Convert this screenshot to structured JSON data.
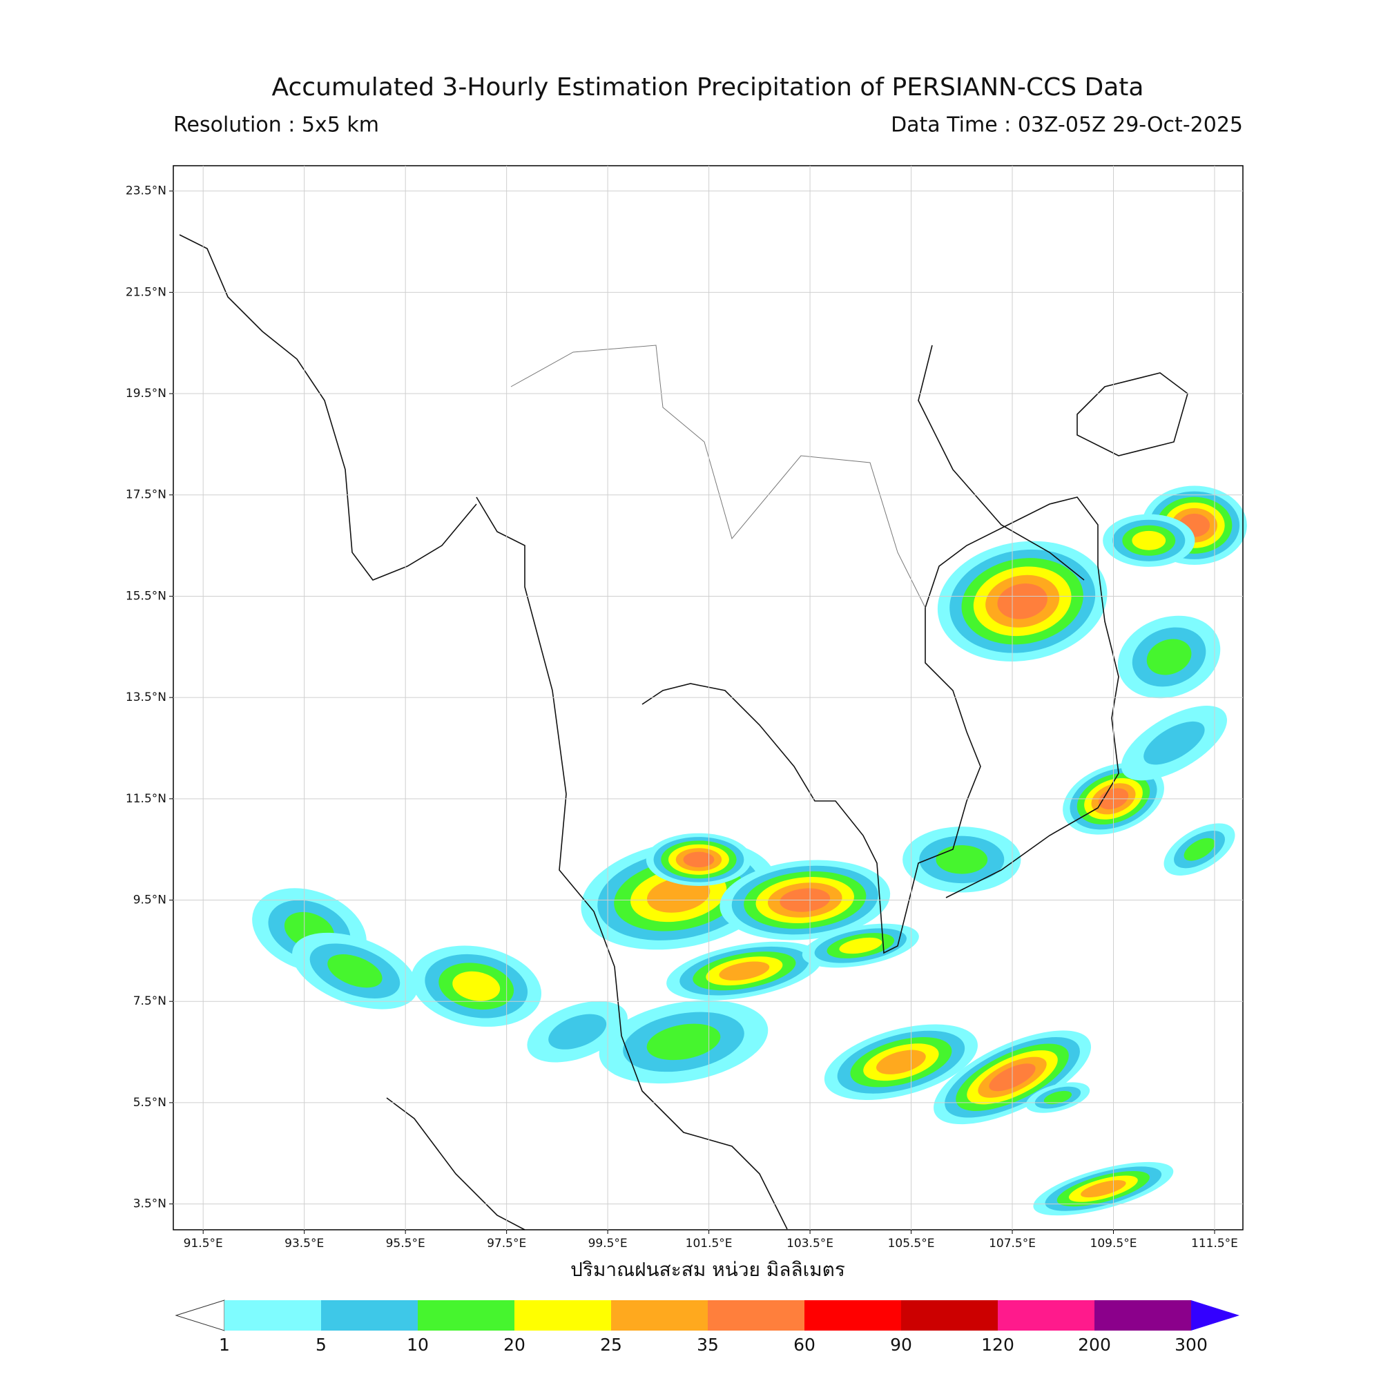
{
  "header": {
    "title": "Accumulated 3-Hourly Estimation Precipitation of PERSIANN-CCS Data",
    "resolution": "Resolution : 5x5 km",
    "data_time": "Data Time : 03Z-05Z 29-Oct-2025"
  },
  "map": {
    "xlim": [
      90.91,
      112.06
    ],
    "ylim": [
      2.99,
      24.0
    ],
    "grid": true,
    "xticks": [
      {
        "value": 91.5,
        "label": "91.5°E"
      },
      {
        "value": 93.5,
        "label": "93.5°E"
      },
      {
        "value": 95.5,
        "label": "95.5°E"
      },
      {
        "value": 97.5,
        "label": "97.5°E"
      },
      {
        "value": 99.5,
        "label": "99.5°E"
      },
      {
        "value": 101.5,
        "label": "101.5°E"
      },
      {
        "value": 103.5,
        "label": "103.5°E"
      },
      {
        "value": 105.5,
        "label": "105.5°E"
      },
      {
        "value": 107.5,
        "label": "107.5°E"
      },
      {
        "value": 109.5,
        "label": "109.5°E"
      },
      {
        "value": 111.5,
        "label": "111.5°E"
      }
    ],
    "yticks": [
      {
        "value": 3.5,
        "label": "3.5°N"
      },
      {
        "value": 5.5,
        "label": "5.5°N"
      },
      {
        "value": 7.5,
        "label": "7.5°N"
      },
      {
        "value": 9.5,
        "label": "9.5°N"
      },
      {
        "value": 11.5,
        "label": "11.5°N"
      },
      {
        "value": 13.5,
        "label": "13.5°N"
      },
      {
        "value": 15.5,
        "label": "15.5°N"
      },
      {
        "value": 17.5,
        "label": "17.5°N"
      },
      {
        "value": 19.5,
        "label": "19.5°N"
      },
      {
        "value": 21.5,
        "label": "21.5°N"
      },
      {
        "value": 23.5,
        "label": "23.5°N"
      }
    ]
  },
  "colorbar": {
    "label": "ปริมาณฝนสะสม หน่วย มิลลิเมตร",
    "levels": [
      1,
      5,
      10,
      20,
      25,
      35,
      60,
      90,
      120,
      200,
      300
    ],
    "colors": [
      "#7ffcff",
      "#3ec8e8",
      "#46f52e",
      "#ffff00",
      "#ffa91e",
      "#ff7f3c",
      "#ff0000",
      "#cc0000",
      "#ff1a8c",
      "#8b008b",
      "#3300ff"
    ]
  }
}
